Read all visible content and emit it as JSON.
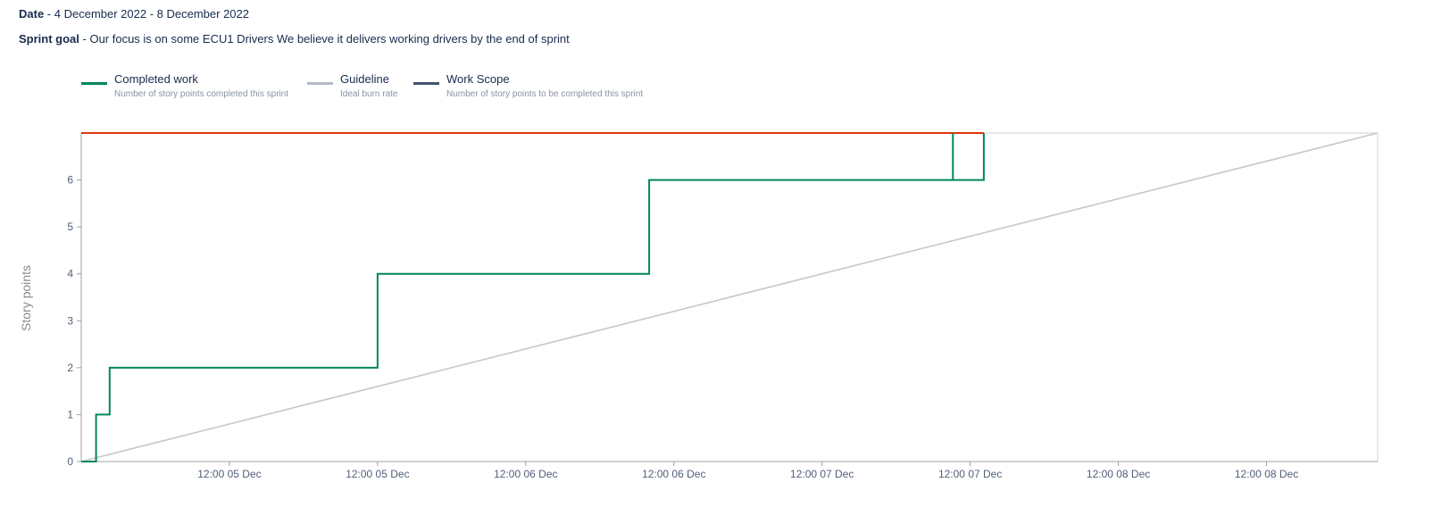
{
  "header": {
    "date_label": "Date",
    "date_value": "4 December 2022 - 8 December 2022",
    "goal_label": "Sprint goal",
    "goal_value": "Our focus is on some ECU1 Drivers We believe it delivers working drivers by the end of sprint",
    "separator": " - "
  },
  "legend": [
    {
      "title": "Completed work",
      "description": "Number of story points completed this sprint",
      "color": "#00875a"
    },
    {
      "title": "Guideline",
      "description": "Ideal burn rate",
      "color": "#b3bac5"
    },
    {
      "title": "Work Scope",
      "description": "Number of story points to be completed this sprint",
      "color": "#42526e"
    }
  ],
  "chart_data": {
    "type": "line",
    "title": "",
    "ylabel": "Story points",
    "xlabel": "",
    "ylim": [
      0,
      7
    ],
    "xlim": [
      0,
      105
    ],
    "y_ticks": [
      0,
      1,
      2,
      3,
      4,
      5,
      6
    ],
    "x_ticks": [
      {
        "x": 12,
        "label": "12:00 05 Dec"
      },
      {
        "x": 24,
        "label": "12:00 05 Dec"
      },
      {
        "x": 36,
        "label": "12:00 06 Dec"
      },
      {
        "x": 48,
        "label": "12:00 06 Dec"
      },
      {
        "x": 60,
        "label": "12:00 07 Dec"
      },
      {
        "x": 72,
        "label": "12:00 07 Dec"
      },
      {
        "x": 84,
        "label": "12:00 08 Dec"
      },
      {
        "x": 96,
        "label": "12:00 08 Dec"
      }
    ],
    "series": [
      {
        "name": "Completed work",
        "color": "#00875a",
        "step": true,
        "points": [
          [
            0,
            0
          ],
          [
            1.2,
            0
          ],
          [
            1.2,
            1
          ],
          [
            2.3,
            1
          ],
          [
            2.3,
            2
          ],
          [
            24,
            2
          ],
          [
            24,
            4
          ],
          [
            46,
            4
          ],
          [
            46,
            6
          ],
          [
            70.6,
            6
          ],
          [
            70.6,
            7
          ],
          [
            70.6,
            6
          ],
          [
            73.1,
            6
          ],
          [
            73.1,
            7
          ]
        ]
      },
      {
        "name": "Guideline",
        "color": "#c8c8c8",
        "points": [
          [
            0,
            0
          ],
          [
            105,
            7
          ]
        ]
      },
      {
        "name": "Work Scope",
        "color": "#de350b",
        "points": [
          [
            0,
            7
          ],
          [
            73.1,
            7
          ]
        ]
      }
    ]
  }
}
